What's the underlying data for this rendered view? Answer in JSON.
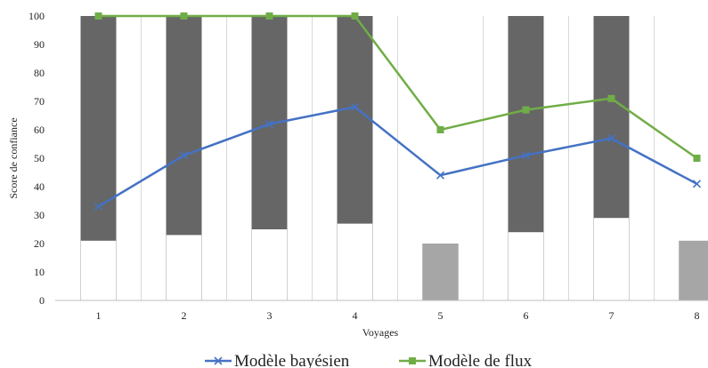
{
  "chart_data": {
    "type": "bar",
    "xlabel": "Voyages",
    "ylabel": "Score de confiance",
    "ylim": [
      0,
      100
    ],
    "yticks": [
      0,
      10,
      20,
      30,
      40,
      50,
      60,
      70,
      80,
      90,
      100
    ],
    "categories": [
      "1",
      "2",
      "3",
      "4",
      "5",
      "6",
      "7",
      "8"
    ],
    "bars": {
      "lower": [
        21,
        23,
        25,
        27,
        20,
        24,
        29,
        21
      ],
      "upper": [
        100,
        100,
        100,
        100,
        20,
        100,
        100,
        21
      ],
      "colors": [
        "#666666",
        "#666666",
        "#666666",
        "#666666",
        "#a6a6a6",
        "#666666",
        "#666666",
        "#a6a6a6"
      ]
    },
    "series": [
      {
        "name": "Modèle bayésien",
        "values": [
          33,
          51,
          62,
          68,
          44,
          51,
          57,
          41
        ],
        "color": "#4472c4",
        "marker": "x"
      },
      {
        "name": "Modèle de flux",
        "values": [
          100,
          100,
          100,
          100,
          60,
          67,
          71,
          50
        ],
        "color": "#70ad47",
        "marker": "square"
      }
    ],
    "legend": "bottom"
  }
}
